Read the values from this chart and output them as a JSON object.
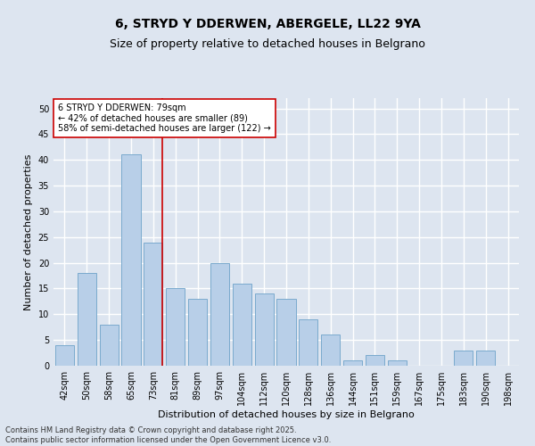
{
  "title": "6, STRYD Y DDERWEN, ABERGELE, LL22 9YA",
  "subtitle": "Size of property relative to detached houses in Belgrano",
  "xlabel": "Distribution of detached houses by size in Belgrano",
  "ylabel": "Number of detached properties",
  "categories": [
    "42sqm",
    "50sqm",
    "58sqm",
    "65sqm",
    "73sqm",
    "81sqm",
    "89sqm",
    "97sqm",
    "104sqm",
    "112sqm",
    "120sqm",
    "128sqm",
    "136sqm",
    "144sqm",
    "151sqm",
    "159sqm",
    "167sqm",
    "175sqm",
    "183sqm",
    "190sqm",
    "198sqm"
  ],
  "values": [
    4,
    18,
    8,
    41,
    24,
    15,
    13,
    20,
    16,
    14,
    13,
    9,
    6,
    1,
    2,
    1,
    0,
    0,
    3,
    3,
    0
  ],
  "bar_color": "#b8cfe8",
  "bar_edge_color": "#7aaace",
  "background_color": "#dde5f0",
  "grid_color": "#ffffff",
  "vline_x_index": 4.42,
  "vline_color": "#cc0000",
  "annotation_text": "6 STRYD Y DDERWEN: 79sqm\n← 42% of detached houses are smaller (89)\n58% of semi-detached houses are larger (122) →",
  "annotation_box_facecolor": "#ffffff",
  "annotation_box_edgecolor": "#cc0000",
  "ylim": [
    0,
    52
  ],
  "yticks": [
    0,
    5,
    10,
    15,
    20,
    25,
    30,
    35,
    40,
    45,
    50
  ],
  "footer": "Contains HM Land Registry data © Crown copyright and database right 2025.\nContains public sector information licensed under the Open Government Licence v3.0.",
  "title_fontsize": 10,
  "subtitle_fontsize": 9,
  "xlabel_fontsize": 8,
  "ylabel_fontsize": 8,
  "tick_fontsize": 7,
  "annotation_fontsize": 7,
  "footer_fontsize": 6
}
